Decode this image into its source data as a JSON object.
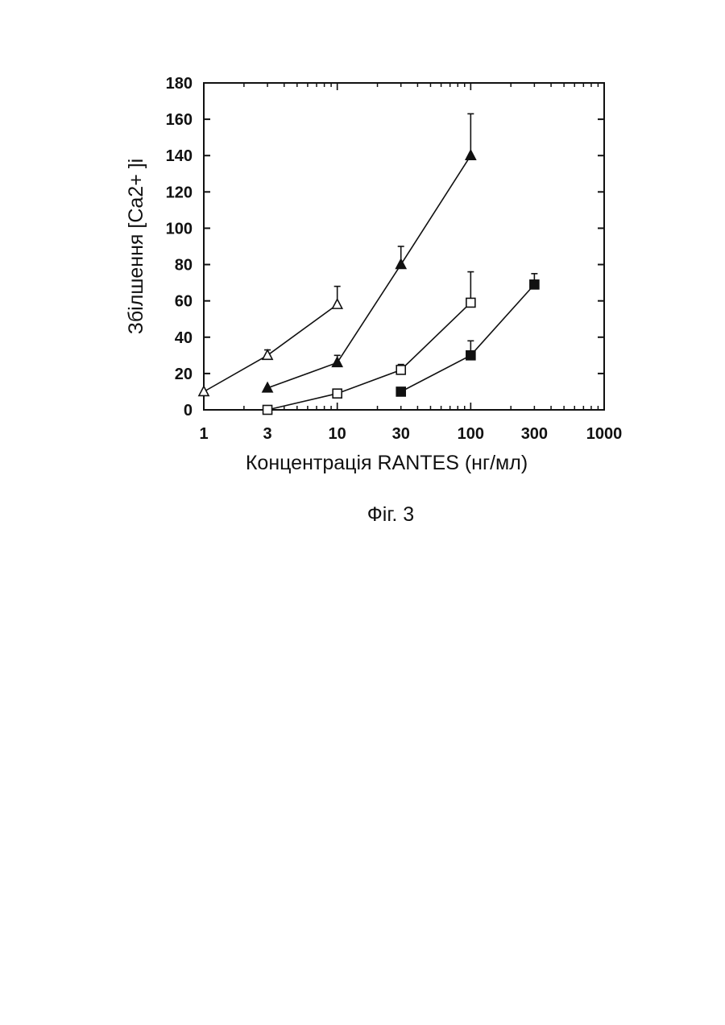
{
  "chart_data": {
    "type": "scatter",
    "title": "",
    "xlabel": "Концентрація RANTES (нг/мл)",
    "ylabel": "Збілшення [Ca2+ ]i",
    "x_scale": "log",
    "xlim": [
      1,
      1000
    ],
    "ylim": [
      0,
      180
    ],
    "x_ticks": [
      1,
      3,
      10,
      30,
      100,
      300,
      1000
    ],
    "x_tick_labels": [
      "1",
      "3",
      "10",
      "30",
      "100",
      "300",
      "1000"
    ],
    "y_ticks": [
      0,
      20,
      40,
      60,
      80,
      100,
      120,
      140,
      160,
      180
    ],
    "y_tick_labels": [
      "0",
      "20",
      "40",
      "60",
      "80",
      "100",
      "120",
      "140",
      "160",
      "180"
    ],
    "grid": false,
    "legend": "none",
    "series": [
      {
        "marker": "open-triangle",
        "connected": true,
        "x": [
          1,
          3,
          10
        ],
        "y": [
          10,
          30,
          58
        ],
        "error": [
          0,
          3,
          10
        ]
      },
      {
        "marker": "filled-triangle",
        "connected": true,
        "x": [
          3,
          10,
          30,
          100
        ],
        "y": [
          12,
          26,
          80,
          140
        ],
        "error": [
          0,
          4,
          10,
          23
        ]
      },
      {
        "marker": "open-square",
        "connected": true,
        "x": [
          3,
          10,
          30,
          100
        ],
        "y": [
          0,
          9,
          22,
          59
        ],
        "error": [
          0,
          0,
          3,
          17
        ]
      },
      {
        "marker": "filled-square",
        "connected": true,
        "x": [
          30,
          100,
          300
        ],
        "y": [
          10,
          30,
          69
        ],
        "error": [
          0,
          8,
          6
        ]
      }
    ]
  },
  "caption": "Фіг. 3"
}
